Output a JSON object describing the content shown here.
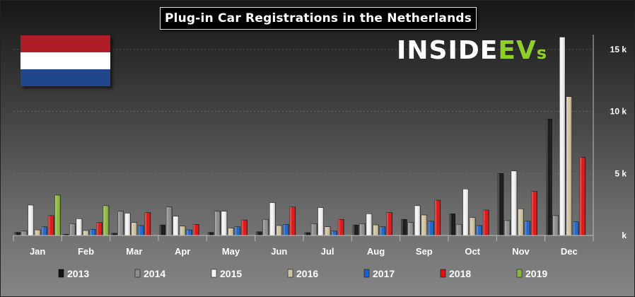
{
  "title": "Plug-in Car Registrations in the Netherlands",
  "logo": {
    "part1": "INSIDE",
    "part2": "EV",
    "part3": "s"
  },
  "flag": {
    "colors": [
      "#ae1c28",
      "#ffffff",
      "#21468b"
    ]
  },
  "chart_data": {
    "type": "bar",
    "title": "Plug-in Car Registrations in the Netherlands",
    "categories": [
      "Jan",
      "Feb",
      "Mar",
      "Apr",
      "May",
      "Jun",
      "Jul",
      "Aug",
      "Sep",
      "Oct",
      "Nov",
      "Dec"
    ],
    "y_ticks": [
      {
        "value": 0,
        "label": "k"
      },
      {
        "value": 5000,
        "label": "5 k"
      },
      {
        "value": 10000,
        "label": "10 k"
      },
      {
        "value": 15000,
        "label": "15 k"
      }
    ],
    "ylim": [
      0,
      16000
    ],
    "legend_position": "bottom",
    "series": [
      {
        "name": "2013",
        "color": "#111111",
        "values": [
          250,
          100,
          180,
          850,
          250,
          300,
          230,
          850,
          1300,
          1750,
          5000,
          9400
        ]
      },
      {
        "name": "2014",
        "color": "#8c8c8c",
        "values": [
          350,
          950,
          1950,
          2300,
          1950,
          1300,
          950,
          950,
          1050,
          900,
          1200,
          1600
        ]
      },
      {
        "name": "2015",
        "color": "#f2f2f2",
        "values": [
          2450,
          1350,
          1800,
          1550,
          1950,
          2650,
          2250,
          1750,
          2400,
          3750,
          5200,
          16000
        ]
      },
      {
        "name": "2016",
        "color": "#cfc3a0",
        "values": [
          450,
          400,
          1050,
          750,
          600,
          800,
          700,
          850,
          1650,
          1450,
          2150,
          11200
        ]
      },
      {
        "name": "2017",
        "color": "#1a64c8",
        "values": [
          700,
          500,
          800,
          450,
          700,
          900,
          350,
          700,
          1150,
          800,
          1150,
          1100
        ]
      },
      {
        "name": "2018",
        "color": "#e01010",
        "values": [
          1600,
          1050,
          1850,
          900,
          1250,
          2300,
          1300,
          1850,
          2850,
          2050,
          3550,
          6300
        ]
      },
      {
        "name": "2019",
        "color": "#8cb83a",
        "values": [
          3250,
          2400,
          null,
          null,
          null,
          null,
          null,
          null,
          null,
          null,
          null,
          null
        ]
      }
    ]
  }
}
